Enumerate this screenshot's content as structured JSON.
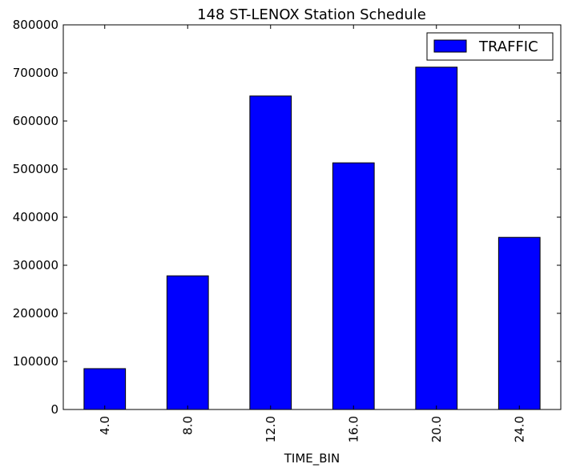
{
  "chart_data": {
    "type": "bar",
    "title": "148 ST-LENOX Station Schedule",
    "xlabel": "TIME_BIN",
    "ylabel": "",
    "categories": [
      "4.0",
      "8.0",
      "12.0",
      "16.0",
      "20.0",
      "24.0"
    ],
    "series": [
      {
        "name": "TRAFFIC",
        "values": [
          85000,
          278000,
          652000,
          513000,
          712000,
          358000
        ],
        "color": "#0000ff"
      }
    ],
    "ylim": [
      0,
      800000
    ],
    "yticks": [
      "0",
      "100000",
      "200000",
      "300000",
      "400000",
      "500000",
      "600000",
      "700000",
      "800000"
    ],
    "legend_position": "top-right",
    "grid": false
  }
}
